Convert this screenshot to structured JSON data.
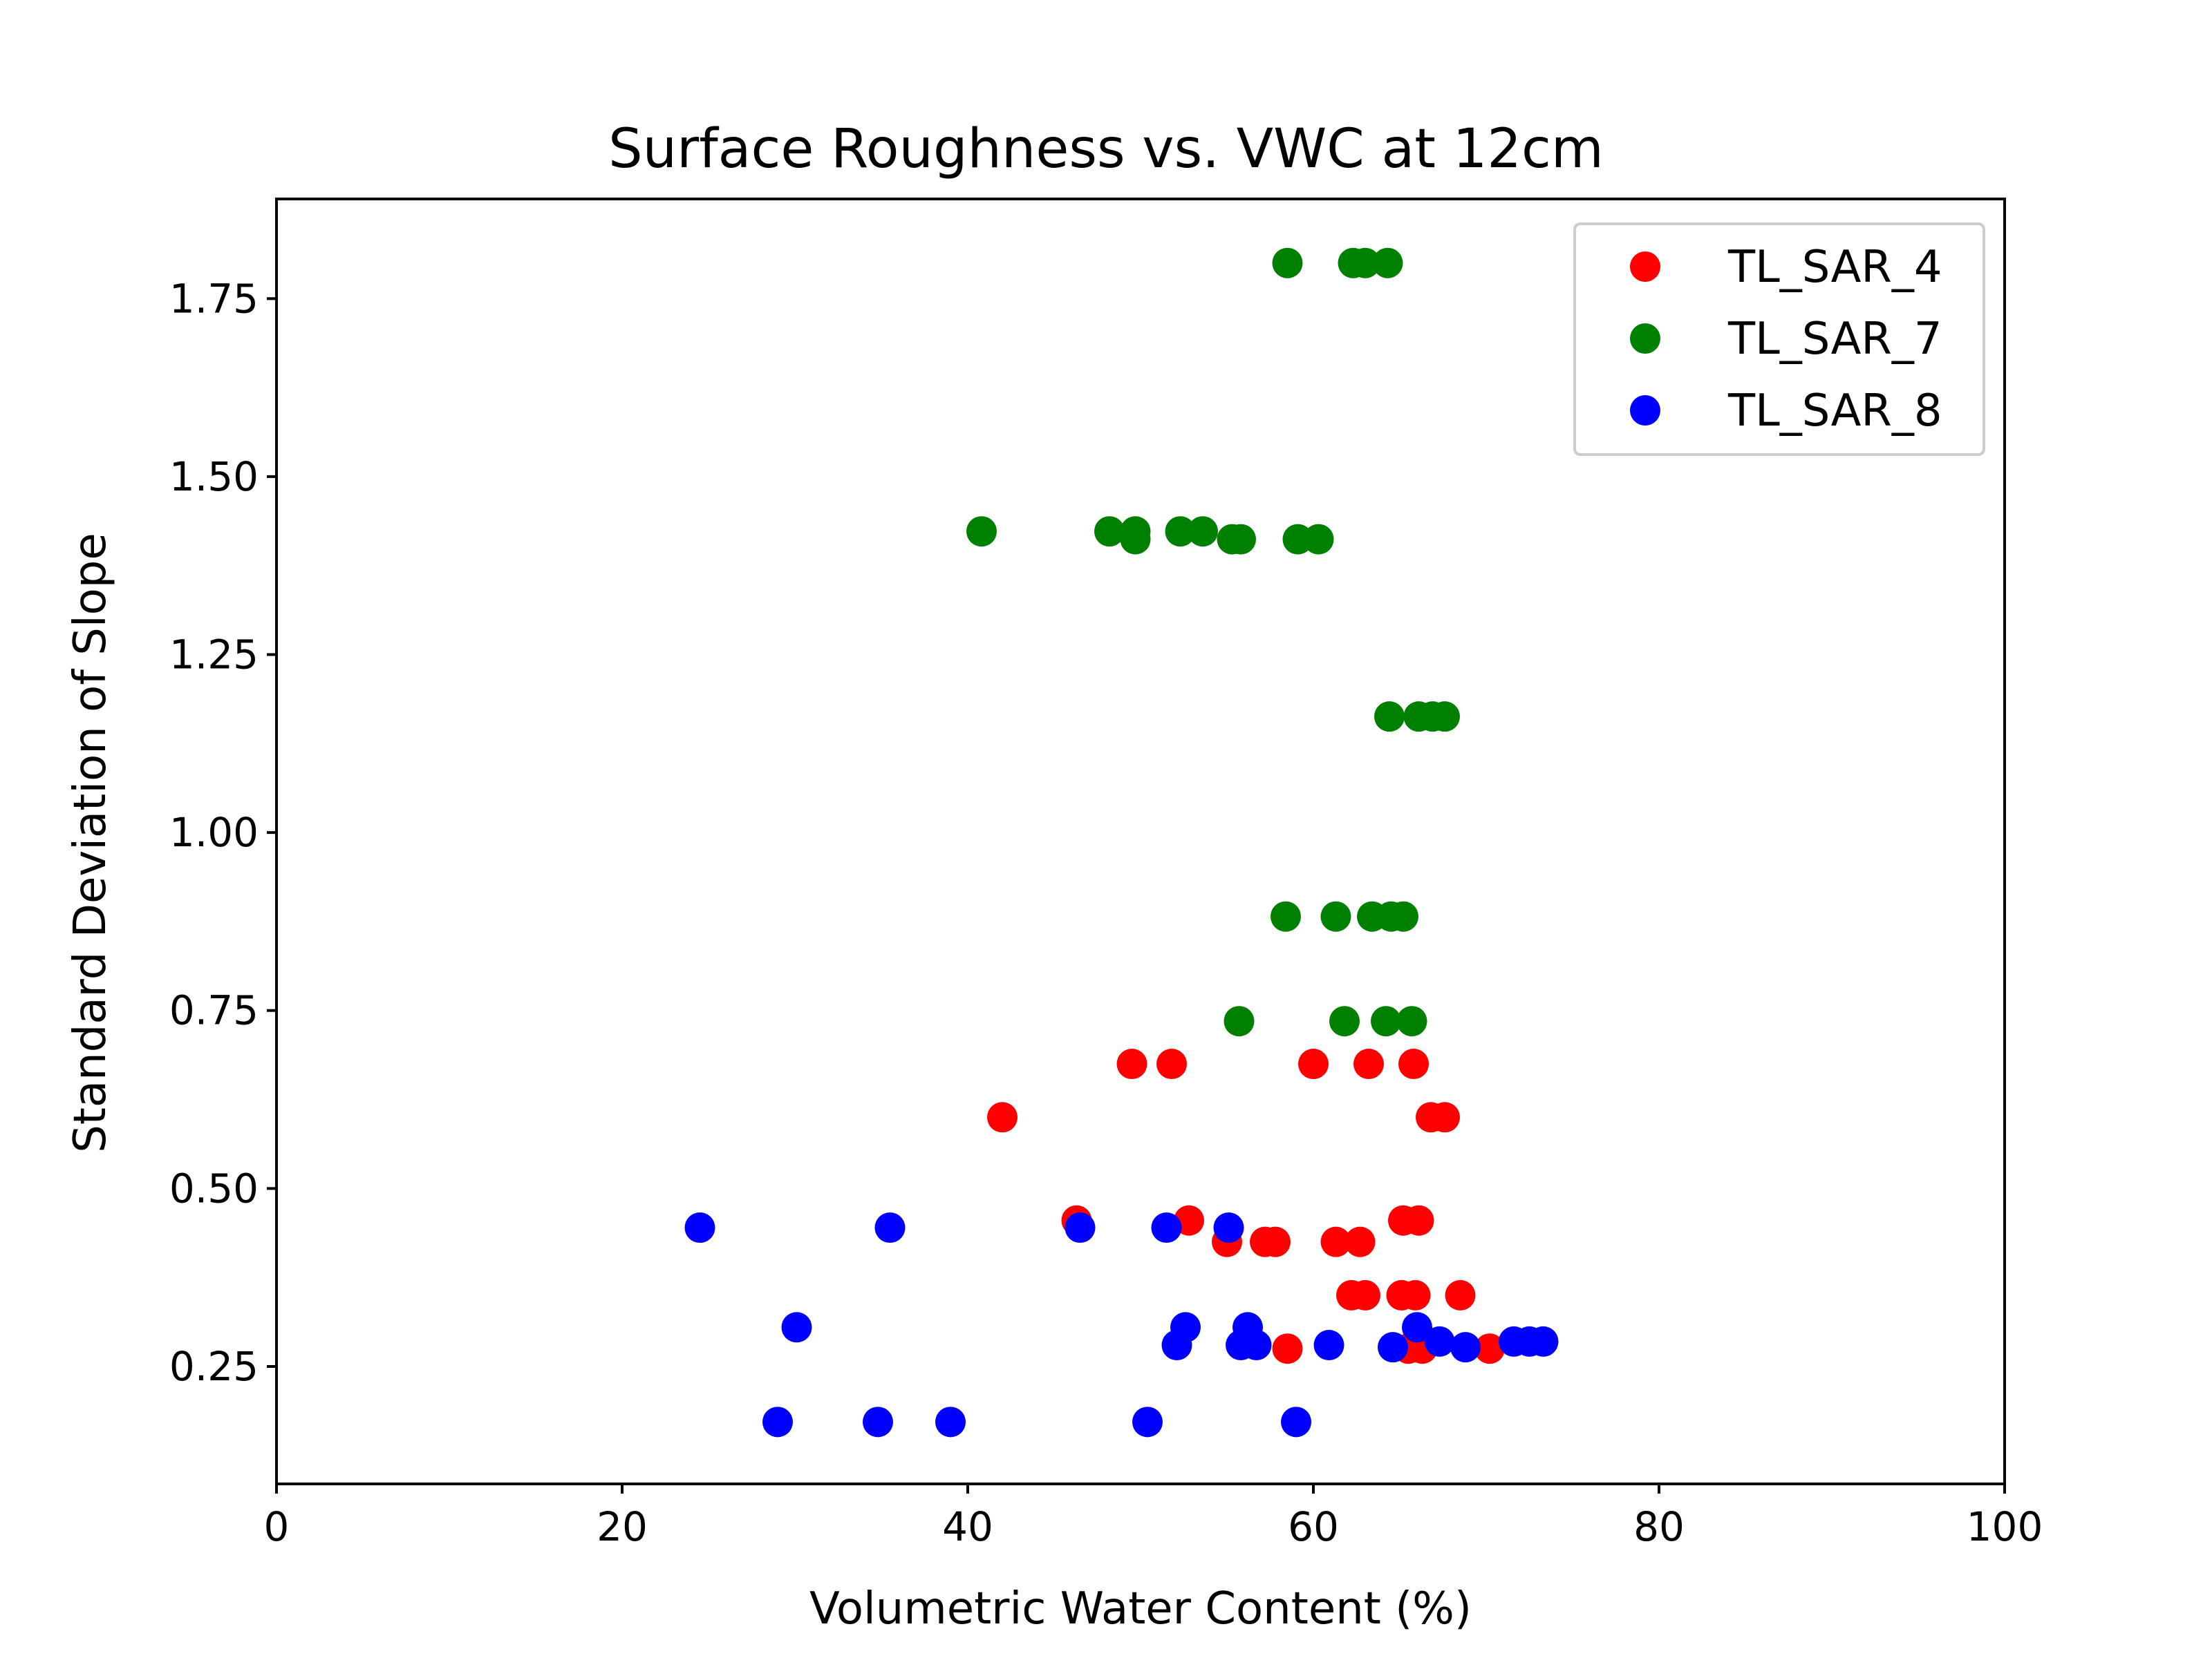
{
  "chart_data": {
    "type": "scatter",
    "title": "Surface Roughness vs. VWC at 12cm",
    "xlabel": "Volumetric Water Content (%)",
    "ylabel": "Standard Deviation of Slope",
    "xlim": [
      0,
      100
    ],
    "ylim": [
      0.085,
      1.89
    ],
    "xticks": [
      0,
      20,
      40,
      60,
      80,
      100
    ],
    "xtick_labels": [
      "0",
      "20",
      "40",
      "60",
      "80",
      "100"
    ],
    "yticks": [
      0.25,
      0.5,
      0.75,
      1.0,
      1.25,
      1.5,
      1.75
    ],
    "ytick_labels": [
      "0.25",
      "0.50",
      "0.75",
      "1.00",
      "1.25",
      "1.50",
      "1.75"
    ],
    "grid": false,
    "legend_position": "top-right",
    "series": [
      {
        "name": "TL_SAR_4",
        "color": "#ff0000",
        "points": [
          [
            49.5,
            0.675
          ],
          [
            51.8,
            0.675
          ],
          [
            60.0,
            0.675
          ],
          [
            63.2,
            0.675
          ],
          [
            65.8,
            0.675
          ],
          [
            42.0,
            0.6
          ],
          [
            66.8,
            0.6
          ],
          [
            67.6,
            0.6
          ],
          [
            46.3,
            0.455
          ],
          [
            52.8,
            0.455
          ],
          [
            65.2,
            0.455
          ],
          [
            66.1,
            0.455
          ],
          [
            55.0,
            0.425
          ],
          [
            57.2,
            0.425
          ],
          [
            57.8,
            0.425
          ],
          [
            61.3,
            0.425
          ],
          [
            62.7,
            0.425
          ],
          [
            62.2,
            0.35
          ],
          [
            63.0,
            0.35
          ],
          [
            65.1,
            0.35
          ],
          [
            65.9,
            0.35
          ],
          [
            68.5,
            0.35
          ],
          [
            58.5,
            0.275
          ],
          [
            65.5,
            0.275
          ],
          [
            66.3,
            0.275
          ],
          [
            70.2,
            0.275
          ]
        ]
      },
      {
        "name": "TL_SAR_7",
        "color": "#008000",
        "points": [
          [
            58.5,
            1.8
          ],
          [
            62.3,
            1.8
          ],
          [
            63.0,
            1.8
          ],
          [
            64.3,
            1.8
          ],
          [
            40.8,
            1.423
          ],
          [
            48.2,
            1.423
          ],
          [
            49.7,
            1.423
          ],
          [
            52.3,
            1.423
          ],
          [
            53.6,
            1.423
          ],
          [
            49.7,
            1.412
          ],
          [
            55.3,
            1.412
          ],
          [
            55.8,
            1.412
          ],
          [
            59.1,
            1.412
          ],
          [
            60.3,
            1.412
          ],
          [
            64.4,
            1.163
          ],
          [
            66.1,
            1.163
          ],
          [
            66.9,
            1.163
          ],
          [
            67.6,
            1.163
          ],
          [
            58.4,
            0.882
          ],
          [
            61.3,
            0.882
          ],
          [
            63.4,
            0.882
          ],
          [
            64.5,
            0.882
          ],
          [
            65.2,
            0.882
          ],
          [
            55.7,
            0.735
          ],
          [
            61.8,
            0.735
          ],
          [
            64.2,
            0.735
          ],
          [
            65.7,
            0.735
          ]
        ]
      },
      {
        "name": "TL_SAR_8",
        "color": "#0000ff",
        "points": [
          [
            24.5,
            0.445
          ],
          [
            35.5,
            0.445
          ],
          [
            46.5,
            0.445
          ],
          [
            51.5,
            0.445
          ],
          [
            55.1,
            0.445
          ],
          [
            30.1,
            0.305
          ],
          [
            52.6,
            0.305
          ],
          [
            56.2,
            0.305
          ],
          [
            66.0,
            0.305
          ],
          [
            52.1,
            0.28
          ],
          [
            55.8,
            0.28
          ],
          [
            56.7,
            0.28
          ],
          [
            60.9,
            0.28
          ],
          [
            64.6,
            0.277
          ],
          [
            68.8,
            0.277
          ],
          [
            67.3,
            0.285
          ],
          [
            71.6,
            0.285
          ],
          [
            72.5,
            0.285
          ],
          [
            73.3,
            0.285
          ],
          [
            29.0,
            0.172
          ],
          [
            34.8,
            0.172
          ],
          [
            39.0,
            0.172
          ],
          [
            50.4,
            0.172
          ],
          [
            59.0,
            0.172
          ]
        ]
      }
    ]
  }
}
